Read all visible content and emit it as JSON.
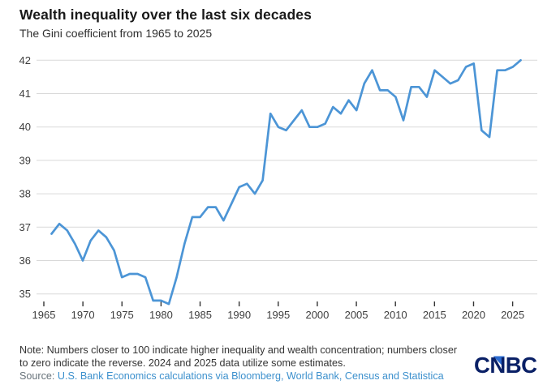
{
  "header": {
    "title": "Wealth inequality over the last six decades",
    "subtitle": "The Gini coefficient from 1965 to 2025"
  },
  "chart_data": {
    "type": "line",
    "series_name": "Gini coefficient",
    "title": "Wealth inequality over the last six decades",
    "subtitle": "The Gini coefficient from 1965 to 2025",
    "x": [
      1965,
      1966,
      1967,
      1968,
      1969,
      1970,
      1971,
      1972,
      1973,
      1974,
      1975,
      1976,
      1977,
      1978,
      1979,
      1980,
      1981,
      1982,
      1983,
      1984,
      1985,
      1986,
      1987,
      1988,
      1989,
      1990,
      1991,
      1992,
      1993,
      1994,
      1995,
      1996,
      1997,
      1998,
      1999,
      2000,
      2001,
      2002,
      2003,
      2004,
      2005,
      2006,
      2007,
      2008,
      2009,
      2010,
      2011,
      2012,
      2013,
      2014,
      2015,
      2016,
      2017,
      2018,
      2019,
      2020,
      2021,
      2022,
      2023,
      2024,
      2025
    ],
    "values": [
      36.8,
      37.1,
      36.9,
      36.5,
      36.0,
      36.6,
      36.9,
      36.7,
      36.3,
      35.5,
      35.6,
      35.6,
      35.5,
      34.8,
      34.8,
      34.7,
      35.5,
      36.5,
      37.3,
      37.3,
      37.6,
      37.6,
      37.2,
      37.7,
      38.2,
      38.3,
      38.0,
      38.4,
      40.4,
      40.0,
      39.9,
      40.2,
      40.5,
      40.0,
      40.0,
      40.1,
      40.6,
      40.4,
      40.8,
      40.5,
      41.3,
      41.7,
      41.1,
      41.1,
      40.9,
      40.2,
      41.2,
      41.2,
      40.9,
      41.7,
      41.5,
      41.3,
      41.4,
      41.8,
      41.9,
      39.9,
      39.7,
      41.7,
      41.7,
      41.8,
      42.0
    ],
    "xlabel": "",
    "ylabel": "",
    "ylim": [
      34.5,
      42
    ],
    "yticks": [
      35,
      36,
      37,
      38,
      39,
      40,
      41,
      42
    ],
    "xticks": [
      1965,
      1970,
      1975,
      1980,
      1985,
      1990,
      1995,
      2000,
      2005,
      2010,
      2015,
      2020,
      2025
    ],
    "grid": "horizontal",
    "legend": "none",
    "line_color": "#4c95d6"
  },
  "footer": {
    "note_line1": "Note: Numbers closer to 100 indicate higher inequality and wealth concentration; numbers closer",
    "note_line2": "to zero indicate the reverse. 2024 and 2025 data utilize some estimates.",
    "source_label": "Source:",
    "source_link_text": "U.S. Bank Economics calculations via Bloomberg, World Bank, Census and Statistica",
    "logo_text": "CNBC"
  },
  "colors": {
    "line": "#4c95d6",
    "gridline": "#d9d9d9",
    "axis_text": "#3d3d3d",
    "title_text": "#191919",
    "note_text": "#333333",
    "source_label_text": "#68737b",
    "source_link": "#3c90cd",
    "logo_navy": "#0a2066",
    "logo_triangle_blue": "#2b6bd0"
  }
}
